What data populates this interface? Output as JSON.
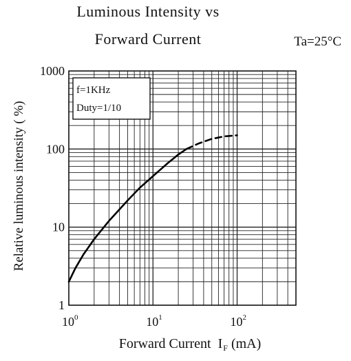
{
  "chart_data": {
    "type": "line",
    "title_line1": "Luminous Intensity vs",
    "title_line2": "Forward Current",
    "condition": "Ta=25°C",
    "xlabel_text": "Forward Current",
    "xlabel_symbol": "I",
    "xlabel_sub": "F",
    "xlabel_unit": "(mA)",
    "ylabel": "Relative luminous intensity ( %)",
    "xscale": "log",
    "yscale": "log",
    "xlim": [
      1,
      500
    ],
    "ylim": [
      1,
      1000
    ],
    "x_ticks": [
      {
        "base": "10",
        "exp": "0",
        "value": 1
      },
      {
        "base": "10",
        "exp": "1",
        "value": 10
      },
      {
        "base": "10",
        "exp": "2",
        "value": 100
      }
    ],
    "y_ticks": [
      {
        "label": "1",
        "value": 1
      },
      {
        "label": "10",
        "value": 10
      },
      {
        "label": "100",
        "value": 100
      },
      {
        "label": "1000",
        "value": 1000
      }
    ],
    "grid": true,
    "annotation_lines": [
      "f=1KHz",
      "Duty=1/10"
    ],
    "annotation_position": "top-left",
    "series": [
      {
        "style": "solid",
        "x": [
          1,
          1.2,
          1.5,
          2,
          3,
          5,
          7,
          10,
          15,
          20,
          25
        ],
        "y": [
          2,
          3,
          4.5,
          7,
          12,
          22,
          32,
          45,
          66,
          85,
          100
        ]
      },
      {
        "style": "dashed",
        "x": [
          25,
          35,
          50,
          70,
          100
        ],
        "y": [
          100,
          118,
          135,
          145,
          150
        ]
      }
    ]
  }
}
